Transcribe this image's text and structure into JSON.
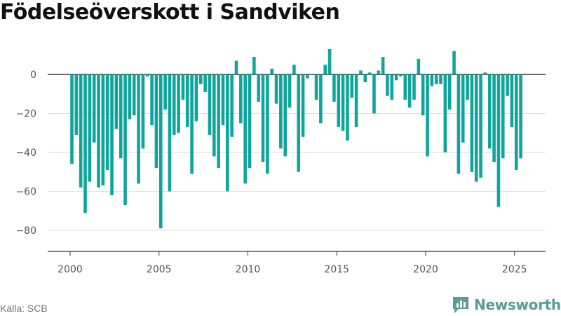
{
  "title": "Födelseöverskott i Sandviken",
  "source": "Källa: SCB",
  "brand": "Newsworthy",
  "colors": {
    "bar": "#10a59b",
    "grid": "#dddddd",
    "axis": "#333333",
    "text": "#555555",
    "brand": "#5a9b96"
  },
  "chart_data": {
    "type": "bar",
    "frequency": "quarterly",
    "x_start": "2000-Q1",
    "ylim": [
      -90,
      16
    ],
    "yticks": [
      0,
      -20,
      -40,
      -60,
      -80
    ],
    "xticks": [
      2000,
      2005,
      2010,
      2015,
      2020,
      2025
    ],
    "grid": true,
    "legend": "none",
    "values": [
      -46,
      -31,
      -58,
      -71,
      -55,
      -35,
      -58,
      -57,
      -49,
      -62,
      -28,
      -43,
      -67,
      -23,
      -21,
      -56,
      -38,
      -1,
      -26,
      -48,
      -79,
      -18,
      -60,
      -31,
      -30,
      -13,
      -27,
      -51,
      -24,
      -5,
      -9,
      -31,
      -42,
      -48,
      -26,
      -60,
      -32,
      7,
      -25,
      -56,
      -48,
      9,
      -14,
      -45,
      -51,
      3,
      -15,
      -38,
      -42,
      -17,
      5,
      -50,
      -32,
      -2,
      0,
      -13,
      -25,
      5,
      13,
      -14,
      -27,
      -29,
      -34,
      -12,
      -27,
      2,
      -4,
      1,
      -20,
      2,
      9,
      -11,
      -13,
      -3,
      -1,
      -13,
      -17,
      -13,
      8,
      -21,
      -42,
      -6,
      -5,
      -5,
      -40,
      -18,
      12,
      -51,
      -35,
      -13,
      -50,
      -55,
      -53,
      1,
      -38,
      -45,
      -68,
      -43,
      -11,
      -27,
      -49,
      -43
    ]
  }
}
